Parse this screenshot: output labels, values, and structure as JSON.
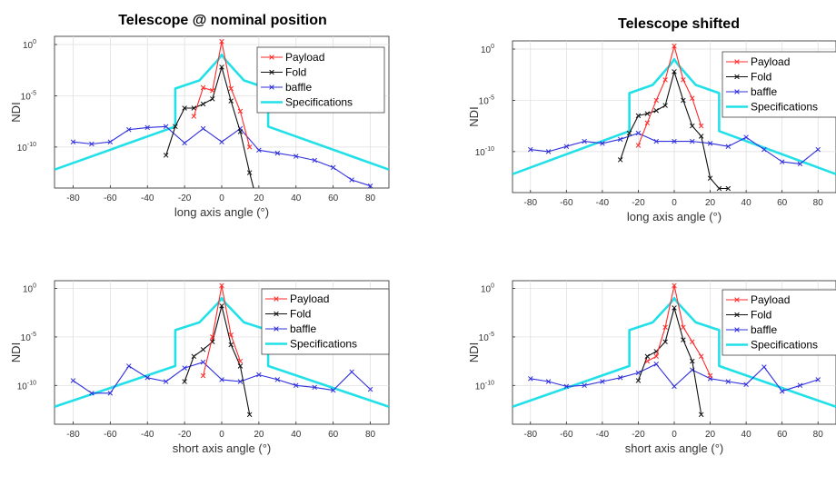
{
  "titles": [
    "Telescope @ nominal position",
    "Telescope shifted"
  ],
  "chart_data": [
    {
      "type": "line",
      "title": "Telescope @ nominal position",
      "xlabel": "long axis angle (°)",
      "ylabel": "NDI",
      "xlim": [
        -90,
        90
      ],
      "ylim_exp": [
        -14,
        0.8
      ],
      "yscale": "log",
      "xticks": [
        -80,
        -60,
        -40,
        -20,
        0,
        20,
        40,
        60,
        80
      ],
      "yticks": [
        {
          "exp": 0,
          "label": "10",
          "sup": "0"
        },
        {
          "exp": -5,
          "label": "10",
          "sup": "-5"
        },
        {
          "exp": -10,
          "label": "10",
          "sup": "-10"
        }
      ],
      "grid": true,
      "legend": "top-right",
      "series": [
        {
          "name": "Payload",
          "color": "#ff2a2a",
          "marker": "x",
          "x": [
            -15,
            -10,
            -5,
            0,
            5,
            10,
            15
          ],
          "y_exp": [
            -7,
            -4.2,
            -4.5,
            0.3,
            -4.3,
            -6.5,
            -10
          ]
        },
        {
          "name": "Fold",
          "color": "#111111",
          "marker": "x",
          "x": [
            -30,
            -25,
            -20,
            -15,
            -10,
            -5,
            0,
            5,
            10,
            15,
            20
          ],
          "y_exp": [
            -10.8,
            -8,
            -6.2,
            -6.2,
            -5.8,
            -5.3,
            -2.2,
            -5.5,
            -8.5,
            -12.5,
            -16
          ]
        },
        {
          "name": "baffle",
          "color": "#2f2fdd",
          "marker": "x",
          "x": [
            -80,
            -70,
            -60,
            -50,
            -40,
            -30,
            -20,
            -10,
            0,
            10,
            20,
            30,
            40,
            50,
            60,
            70,
            80
          ],
          "y_exp": [
            -9.5,
            -9.7,
            -9.5,
            -8.3,
            -8.1,
            -8,
            -9.6,
            -8.2,
            -9.5,
            -8.2,
            -10.3,
            -10.6,
            -10.9,
            -11.3,
            -12,
            -13.2,
            -13.8
          ]
        },
        {
          "name": "Specifications",
          "color": "#22e0e8",
          "marker": "none",
          "x": [
            -90,
            -25,
            -25,
            -12,
            -2,
            0,
            2,
            12,
            25,
            25,
            90
          ],
          "y_exp": [
            -12.2,
            -8,
            -4.3,
            -3.5,
            -1.5,
            -1,
            -1.5,
            -3.5,
            -4.3,
            -8,
            -12.2
          ]
        }
      ]
    },
    {
      "type": "line",
      "title": "Telescope shifted",
      "xlabel": "long axis angle (°)",
      "ylabel": "NDI",
      "xlim": [
        -90,
        90
      ],
      "ylim_exp": [
        -14,
        0.8
      ],
      "yscale": "log",
      "xticks": [
        -80,
        -60,
        -40,
        -20,
        0,
        20,
        40,
        60,
        80
      ],
      "yticks": [
        {
          "exp": 0,
          "label": "10",
          "sup": "0"
        },
        {
          "exp": -5,
          "label": "10",
          "sup": "-5"
        },
        {
          "exp": -10,
          "label": "10",
          "sup": "-10"
        }
      ],
      "grid": true,
      "legend": "top-right",
      "series": [
        {
          "name": "Payload",
          "color": "#ff2a2a",
          "marker": "x",
          "x": [
            -20,
            -15,
            -10,
            -5,
            0,
            5,
            10,
            15
          ],
          "y_exp": [
            -9.4,
            -7.2,
            -5,
            -3,
            0.3,
            -3,
            -4.8,
            -7.5
          ]
        },
        {
          "name": "Fold",
          "color": "#111111",
          "marker": "x",
          "x": [
            -30,
            -25,
            -20,
            -15,
            -10,
            -5,
            0,
            5,
            10,
            15,
            20,
            25,
            30
          ],
          "y_exp": [
            -10.8,
            -8.2,
            -6.5,
            -6.3,
            -6,
            -5.5,
            -2.2,
            -5,
            -7.5,
            -8.5,
            -12.6,
            -13.6,
            -13.6
          ]
        },
        {
          "name": "baffle",
          "color": "#2f2fdd",
          "marker": "x",
          "x": [
            -80,
            -70,
            -60,
            -50,
            -40,
            -30,
            -20,
            -10,
            0,
            10,
            20,
            30,
            40,
            50,
            60,
            70,
            80
          ],
          "y_exp": [
            -9.8,
            -10,
            -9.5,
            -9,
            -9.2,
            -8.8,
            -8.2,
            -9,
            -9,
            -9,
            -9.2,
            -9.5,
            -8.6,
            -9.8,
            -11,
            -11.2,
            -9.8
          ]
        },
        {
          "name": "Specifications",
          "color": "#22e0e8",
          "marker": "none",
          "x": [
            -90,
            -25,
            -25,
            -12,
            -2,
            0,
            2,
            12,
            25,
            25,
            90
          ],
          "y_exp": [
            -12.2,
            -8,
            -4.3,
            -3.5,
            -1.5,
            -1,
            -1.5,
            -3.5,
            -4.3,
            -8,
            -12.2
          ]
        }
      ]
    },
    {
      "type": "line",
      "title": "",
      "xlabel": "short axis angle (°)",
      "ylabel": "NDI",
      "xlim": [
        -90,
        90
      ],
      "ylim_exp": [
        -14,
        0.8
      ],
      "yscale": "log",
      "xticks": [
        -80,
        -60,
        -40,
        -20,
        0,
        20,
        40,
        60,
        80
      ],
      "yticks": [
        {
          "exp": 0,
          "label": "10",
          "sup": "0"
        },
        {
          "exp": -5,
          "label": "10",
          "sup": "-5"
        },
        {
          "exp": -10,
          "label": "10",
          "sup": "-10"
        }
      ],
      "grid": true,
      "legend": "top-right",
      "series": [
        {
          "name": "Payload",
          "color": "#ff2a2a",
          "marker": "x",
          "x": [
            -10,
            -5,
            0,
            5,
            10
          ],
          "y_exp": [
            -9,
            -5,
            0.3,
            -4.8,
            -7.5
          ]
        },
        {
          "name": "Fold",
          "color": "#111111",
          "marker": "x",
          "x": [
            -20,
            -15,
            -10,
            -5,
            0,
            5,
            10,
            15
          ],
          "y_exp": [
            -9.6,
            -7,
            -6.3,
            -5.5,
            -1.8,
            -5.8,
            -8,
            -13
          ]
        },
        {
          "name": "baffle",
          "color": "#2f2fdd",
          "marker": "x",
          "x": [
            -80,
            -70,
            -60,
            -50,
            -40,
            -30,
            -20,
            -10,
            0,
            10,
            20,
            30,
            40,
            50,
            60,
            70,
            80
          ],
          "y_exp": [
            -9.5,
            -10.8,
            -10.8,
            -8,
            -9.2,
            -9.6,
            -8.2,
            -7.6,
            -9.4,
            -9.6,
            -8.9,
            -9.4,
            -10,
            -10.2,
            -10.5,
            -8.6,
            -10.4
          ]
        },
        {
          "name": "Specifications",
          "color": "#22e0e8",
          "marker": "none",
          "x": [
            -90,
            -25,
            -25,
            -12,
            -2,
            0,
            2,
            12,
            25,
            25,
            90
          ],
          "y_exp": [
            -12.2,
            -8,
            -4.3,
            -3.5,
            -1.5,
            -1,
            -1.5,
            -3.5,
            -4.3,
            -8,
            -12.2
          ]
        }
      ]
    },
    {
      "type": "line",
      "title": "",
      "xlabel": "short axis angle (°)",
      "ylabel": "NDI",
      "xlim": [
        -90,
        90
      ],
      "ylim_exp": [
        -14,
        0.8
      ],
      "yscale": "log",
      "xticks": [
        -80,
        -60,
        -40,
        -20,
        0,
        20,
        40,
        60,
        80
      ],
      "yticks": [
        {
          "exp": 0,
          "label": "10",
          "sup": "0"
        },
        {
          "exp": -5,
          "label": "10",
          "sup": "-5"
        },
        {
          "exp": -10,
          "label": "10",
          "sup": "-10"
        }
      ],
      "grid": true,
      "legend": "top-right",
      "series": [
        {
          "name": "Payload",
          "color": "#ff2a2a",
          "marker": "x",
          "x": [
            -15,
            -10,
            -5,
            0,
            5,
            10,
            15,
            20
          ],
          "y_exp": [
            -7.5,
            -7,
            -4,
            0.3,
            -4,
            -5.5,
            -7,
            -9
          ]
        },
        {
          "name": "Fold",
          "color": "#111111",
          "marker": "x",
          "x": [
            -20,
            -15,
            -10,
            -5,
            0,
            5,
            10,
            15
          ],
          "y_exp": [
            -9.5,
            -7,
            -6.5,
            -5.5,
            -2,
            -5.3,
            -7.5,
            -13
          ]
        },
        {
          "name": "baffle",
          "color": "#2f2fdd",
          "marker": "x",
          "x": [
            -80,
            -70,
            -60,
            -50,
            -40,
            -30,
            -20,
            -10,
            0,
            10,
            20,
            30,
            40,
            50,
            60,
            70,
            80
          ],
          "y_exp": [
            -9.3,
            -9.6,
            -10.1,
            -10,
            -9.6,
            -9.2,
            -8.7,
            -7.8,
            -10.1,
            -8.4,
            -9.3,
            -9.6,
            -9.9,
            -8.1,
            -10.6,
            -10,
            -9.4
          ]
        },
        {
          "name": "Specifications",
          "color": "#22e0e8",
          "marker": "none",
          "x": [
            -90,
            -25,
            -25,
            -12,
            -2,
            0,
            2,
            12,
            25,
            25,
            90
          ],
          "y_exp": [
            -12.2,
            -8,
            -4.3,
            -3.5,
            -1.5,
            -1,
            -1.5,
            -3.5,
            -4.3,
            -8,
            -12.2
          ]
        }
      ]
    }
  ]
}
